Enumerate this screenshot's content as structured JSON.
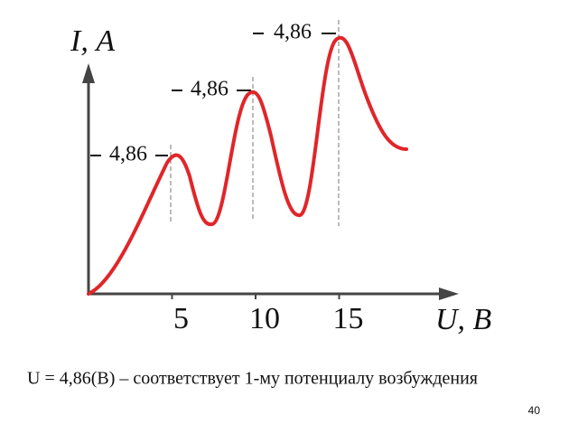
{
  "chart_data": {
    "type": "line",
    "ylabel": "I, А",
    "xlabel": "U, В",
    "xlim": [
      0,
      22
    ],
    "xticks": [
      5,
      10,
      15
    ],
    "color": "#e0262a",
    "annotations": [
      "4,86",
      "4,86",
      "4,86"
    ]
  },
  "caption": "U = 4,86(В) – соответствует 1-му потенциалу возбуждения",
  "slide_number": "40"
}
